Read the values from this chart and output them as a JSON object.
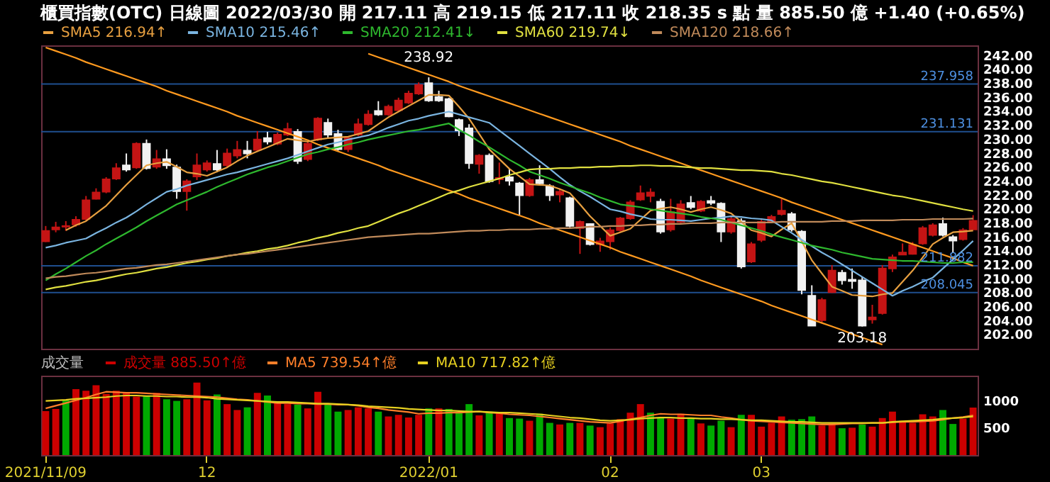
{
  "chart_data": [
    {
      "type": "candlestick",
      "title": "櫃買指數(OTC)  日線圖  2022/03/30  開 217.11  高 219.15  低 217.11  收 218.35  s 點  量 885.50 億  +1.40 (+0.65%)",
      "categories": [
        "2021/11/09",
        null,
        null,
        null,
        null,
        null,
        null,
        null,
        null,
        null,
        null,
        null,
        null,
        null,
        null,
        null,
        "12",
        null,
        null,
        null,
        null,
        null,
        null,
        null,
        null,
        null,
        null,
        null,
        null,
        null,
        null,
        null,
        null,
        null,
        null,
        null,
        null,
        null,
        "2022/01",
        null,
        null,
        null,
        null,
        null,
        null,
        null,
        null,
        null,
        null,
        null,
        null,
        null,
        null,
        null,
        null,
        null,
        "02",
        null,
        null,
        null,
        null,
        null,
        null,
        null,
        null,
        null,
        null,
        null,
        null,
        null,
        null,
        "03",
        null,
        null,
        null,
        null,
        null,
        null,
        null,
        null,
        null,
        null,
        null,
        null,
        null,
        null,
        null,
        null,
        null,
        null,
        null,
        null,
        null
      ],
      "ohlc": [
        [
          215.4,
          217.6,
          215.3,
          216.9
        ],
        [
          217.1,
          218.2,
          216.7,
          217.4
        ],
        [
          217.5,
          218.3,
          216.9,
          217.6
        ],
        [
          217.8,
          219.0,
          217.5,
          218.5
        ],
        [
          218.6,
          221.9,
          218.4,
          221.3
        ],
        [
          221.5,
          223.0,
          221.4,
          222.4
        ],
        [
          222.5,
          224.6,
          222.3,
          224.3
        ],
        [
          224.4,
          226.6,
          224.2,
          225.9
        ],
        [
          226.3,
          228.0,
          225.4,
          225.7
        ],
        [
          226.0,
          229.6,
          225.8,
          229.4
        ],
        [
          229.4,
          230.0,
          225.7,
          225.9
        ],
        [
          226.1,
          228.5,
          225.8,
          227.2
        ],
        [
          227.2,
          228.6,
          225.8,
          226.3
        ],
        [
          226.0,
          226.4,
          221.5,
          222.6
        ],
        [
          222.6,
          224.3,
          219.8,
          224.0
        ],
        [
          224.7,
          228.0,
          224.2,
          226.3
        ],
        [
          225.7,
          227.0,
          225.4,
          226.6
        ],
        [
          226.5,
          228.5,
          225.3,
          225.7
        ],
        [
          226.3,
          228.7,
          226.0,
          228.0
        ],
        [
          227.7,
          229.8,
          227.3,
          228.5
        ],
        [
          228.4,
          229.8,
          227.3,
          228.0
        ],
        [
          228.5,
          231.2,
          228.3,
          230.0
        ],
        [
          230.2,
          231.1,
          229.3,
          229.7
        ],
        [
          229.4,
          231.0,
          229.2,
          230.7
        ],
        [
          230.7,
          232.4,
          230.5,
          231.5
        ],
        [
          231.1,
          231.5,
          226.5,
          226.9
        ],
        [
          227.2,
          229.7,
          226.9,
          229.4
        ],
        [
          230.0,
          233.2,
          229.8,
          233.0
        ],
        [
          232.4,
          233.0,
          230.2,
          230.7
        ],
        [
          230.8,
          231.4,
          228.4,
          228.6
        ],
        [
          228.6,
          230.4,
          228.2,
          230.2
        ],
        [
          230.7,
          233.0,
          230.5,
          232.2
        ],
        [
          232.2,
          234.2,
          232.0,
          233.6
        ],
        [
          234.1,
          235.5,
          233.4,
          233.6
        ],
        [
          233.6,
          235.0,
          233.4,
          234.7
        ],
        [
          234.2,
          236.0,
          234.0,
          235.6
        ],
        [
          235.3,
          237.0,
          235.1,
          236.6
        ],
        [
          236.6,
          238.2,
          236.4,
          237.8
        ],
        [
          238.1,
          238.92,
          235.4,
          235.6
        ],
        [
          236.1,
          237.0,
          235.4,
          235.6
        ],
        [
          235.8,
          236.0,
          233.2,
          233.3
        ],
        [
          232.8,
          233.0,
          230.5,
          231.3
        ],
        [
          231.6,
          232.2,
          225.8,
          226.6
        ],
        [
          226.5,
          227.9,
          225.1,
          227.7
        ],
        [
          227.7,
          228.0,
          223.8,
          224.0
        ],
        [
          224.3,
          226.7,
          223.6,
          224.5
        ],
        [
          224.6,
          225.8,
          223.4,
          224.1
        ],
        [
          223.7,
          223.9,
          219.2,
          222.0
        ],
        [
          222.0,
          224.5,
          221.8,
          224.2
        ],
        [
          224.2,
          226.3,
          223.5,
          223.7
        ],
        [
          223.3,
          223.6,
          221.2,
          222.0
        ],
        [
          222.1,
          223.0,
          221.0,
          222.5
        ],
        [
          221.6,
          221.8,
          217.4,
          217.6
        ],
        [
          217.3,
          218.4,
          213.6,
          218.2
        ],
        [
          217.9,
          218.0,
          214.8,
          215.0
        ],
        [
          215.0,
          215.9,
          213.9,
          215.4
        ],
        [
          215.4,
          217.4,
          214.2,
          217.0
        ],
        [
          217.0,
          218.9,
          216.8,
          218.7
        ],
        [
          218.7,
          221.3,
          218.5,
          221.0
        ],
        [
          221.4,
          223.4,
          221.2,
          222.3
        ],
        [
          221.9,
          223.0,
          221.0,
          222.4
        ],
        [
          221.1,
          221.5,
          216.5,
          216.8
        ],
        [
          217.1,
          221.5,
          216.8,
          219.6
        ],
        [
          218.2,
          221.3,
          218.0,
          220.7
        ],
        [
          220.9,
          221.9,
          220.0,
          220.3
        ],
        [
          219.8,
          221.3,
          219.6,
          221.1
        ],
        [
          221.2,
          221.9,
          220.6,
          220.9
        ],
        [
          220.8,
          221.0,
          215.3,
          216.8
        ],
        [
          216.8,
          219.0,
          216.5,
          218.6
        ],
        [
          218.3,
          218.7,
          211.5,
          211.8
        ],
        [
          212.5,
          215.3,
          212.3,
          215.0
        ],
        [
          215.6,
          218.5,
          215.3,
          218.2
        ],
        [
          218.2,
          219.2,
          218.0,
          218.9
        ],
        [
          219.3,
          221.5,
          219.1,
          219.8
        ],
        [
          219.3,
          219.6,
          216.8,
          217.1
        ],
        [
          216.8,
          217.0,
          207.8,
          208.4
        ],
        [
          207.6,
          209.1,
          203.3,
          203.3
        ],
        [
          204.1,
          207.3,
          203.8,
          207.0
        ],
        [
          208.1,
          212.0,
          208.0,
          211.2
        ],
        [
          210.9,
          211.3,
          209.2,
          209.8
        ],
        [
          209.9,
          211.5,
          208.6,
          209.7
        ],
        [
          209.8,
          210.3,
          203.18,
          203.3
        ],
        [
          204.2,
          206.3,
          203.6,
          204.5
        ],
        [
          205.1,
          212.0,
          204.9,
          211.5
        ],
        [
          211.5,
          213.5,
          211.0,
          213.1
        ],
        [
          213.5,
          215.1,
          213.5,
          213.8
        ],
        [
          213.6,
          215.3,
          213.5,
          214.9
        ],
        [
          215.1,
          217.6,
          214.9,
          217.3
        ],
        [
          216.3,
          218.0,
          216.1,
          217.7
        ],
        [
          217.9,
          218.8,
          216.1,
          216.3
        ],
        [
          216.0,
          216.3,
          213.8,
          215.5
        ],
        [
          215.7,
          217.3,
          215.5,
          217.0
        ],
        [
          217.11,
          219.15,
          217.11,
          218.35
        ]
      ],
      "series": [
        {
          "type": "line",
          "color": "#ff9a1f",
          "values": [
            243.2,
            242.7,
            242.2,
            241.7,
            241.1,
            240.6,
            240.1,
            239.6,
            239.1,
            238.6,
            238.1,
            237.6,
            237.0,
            236.5,
            236.0,
            235.5,
            235.0,
            234.5,
            234.0,
            233.4,
            232.9,
            232.4,
            231.9,
            231.4,
            230.9,
            230.4,
            229.9,
            229.3,
            228.8,
            228.3,
            227.8,
            227.3,
            226.8,
            226.3,
            225.7,
            225.2,
            224.7,
            224.2,
            223.7,
            223.2,
            222.7,
            222.2,
            221.6,
            221.1,
            220.6,
            220.1,
            219.6,
            219.1,
            218.6,
            218.0,
            217.5,
            217.0,
            216.5,
            216.0,
            215.5,
            215.0,
            214.5,
            213.9,
            213.4,
            212.9,
            212.4,
            211.9,
            211.4,
            210.9,
            210.4,
            209.8,
            209.3,
            208.8,
            208.3,
            207.8,
            207.3,
            206.8,
            206.2,
            205.7,
            205.2,
            204.7,
            204.2,
            203.7,
            203.2,
            202.7,
            202.1,
            201.6,
            201.1,
            200.6,
            null,
            null,
            null,
            null,
            null,
            null,
            null,
            null,
            null
          ]
        },
        {
          "type": "line",
          "color": "#ff9a1f",
          "values": [
            null,
            null,
            null,
            null,
            null,
            null,
            null,
            null,
            null,
            null,
            null,
            null,
            null,
            null,
            null,
            null,
            null,
            null,
            null,
            null,
            null,
            null,
            null,
            null,
            null,
            null,
            null,
            null,
            null,
            null,
            null,
            null,
            242.3,
            241.8,
            241.3,
            240.8,
            240.3,
            239.8,
            239.3,
            238.8,
            238.3,
            237.7,
            237.2,
            236.7,
            236.2,
            235.7,
            235.2,
            234.7,
            234.2,
            233.7,
            233.2,
            232.7,
            232.2,
            231.7,
            231.2,
            230.7,
            230.2,
            229.7,
            229.1,
            228.6,
            228.1,
            227.6,
            227.1,
            226.6,
            226.1,
            225.6,
            225.1,
            224.6,
            224.1,
            223.6,
            223.1,
            222.6,
            222.1,
            221.6,
            221.0,
            220.5,
            220.0,
            219.5,
            219.0,
            218.5,
            218.0,
            217.5,
            217.0,
            216.5,
            216.0,
            215.5,
            215.0,
            214.5,
            214.0,
            213.5,
            213.0,
            212.4,
            211.9
          ]
        },
        {
          "name": "SMA5 216.94↑",
          "type": "line",
          "color": "#e8a040",
          "values": [
            null,
            null,
            217.0,
            217.7,
            218.3,
            219.4,
            220.5,
            222.0,
            223.5,
            224.9,
            226.3,
            226.6,
            226.8,
            226.1,
            225.3,
            225.1,
            224.8,
            225.4,
            226.0,
            226.9,
            227.7,
            228.3,
            228.9,
            229.5,
            230.1,
            229.9,
            229.7,
            230.0,
            230.2,
            230.3,
            230.4,
            230.8,
            231.2,
            232.2,
            233.2,
            234.0,
            234.8,
            235.6,
            236.4,
            236.4,
            236.3,
            234.7,
            233.0,
            230.8,
            228.6,
            227.2,
            225.8,
            224.7,
            223.6,
            223.5,
            223.4,
            222.9,
            222.3,
            220.7,
            219.0,
            217.6,
            216.2,
            216.7,
            217.2,
            218.5,
            219.8,
            220.1,
            220.3,
            220.0,
            219.6,
            220.0,
            220.3,
            219.9,
            219.4,
            218.2,
            217.0,
            216.6,
            216.1,
            217.1,
            218.0,
            215.4,
            212.7,
            210.8,
            208.9,
            208.3,
            207.7,
            207.6,
            207.5,
            207.8,
            208.0,
            209.6,
            211.2,
            213.1,
            215.0,
            215.9,
            216.7,
            216.8,
            216.94
          ]
        },
        {
          "name": "SMA10 215.46↑",
          "type": "line",
          "color": "#7ab4e0",
          "values": [
            214.5,
            214.8,
            215.2,
            215.5,
            215.8,
            216.6,
            217.3,
            218.1,
            218.8,
            219.7,
            220.7,
            221.6,
            222.5,
            222.9,
            223.4,
            223.8,
            224.2,
            224.6,
            225.0,
            225.3,
            225.7,
            226.1,
            226.5,
            226.9,
            227.3,
            227.8,
            228.3,
            228.8,
            229.3,
            229.6,
            230.0,
            230.3,
            230.6,
            231.1,
            231.7,
            232.2,
            232.7,
            233.0,
            233.4,
            233.7,
            234.0,
            233.6,
            233.2,
            232.8,
            232.4,
            231.3,
            230.2,
            229.1,
            228.0,
            226.9,
            225.8,
            224.6,
            223.5,
            222.6,
            221.8,
            220.9,
            220.0,
            219.7,
            219.3,
            219.0,
            218.6,
            218.5,
            218.5,
            218.4,
            218.3,
            218.5,
            218.7,
            218.8,
            219.0,
            218.9,
            218.7,
            218.6,
            218.4,
            217.5,
            216.6,
            215.6,
            214.7,
            213.8,
            213.0,
            212.1,
            211.2,
            210.3,
            209.4,
            208.5,
            207.6,
            208.3,
            208.9,
            209.6,
            210.2,
            211.5,
            212.8,
            214.1,
            215.46
          ]
        },
        {
          "name": "SMA20 212.41↓",
          "type": "line",
          "color": "#2eb82e",
          "values": [
            209.8,
            210.7,
            211.5,
            212.4,
            213.3,
            214.1,
            215.0,
            215.8,
            216.6,
            217.4,
            218.3,
            219.1,
            219.9,
            220.7,
            221.3,
            221.9,
            222.5,
            223.2,
            223.8,
            224.4,
            225.0,
            225.5,
            226.0,
            226.4,
            226.9,
            227.4,
            227.9,
            228.2,
            228.6,
            228.9,
            229.3,
            229.6,
            230.0,
            230.3,
            230.6,
            230.9,
            231.2,
            231.4,
            231.7,
            232.0,
            232.3,
            231.4,
            230.6,
            229.7,
            228.9,
            228.0,
            227.1,
            226.3,
            225.4,
            224.9,
            224.4,
            223.8,
            223.3,
            222.8,
            222.3,
            221.7,
            221.2,
            220.7,
            220.5,
            220.3,
            220.0,
            219.8,
            219.6,
            219.4,
            219.2,
            218.9,
            218.7,
            218.5,
            218.1,
            217.7,
            217.3,
            216.9,
            216.4,
            216.0,
            215.6,
            215.2,
            214.8,
            214.5,
            214.2,
            213.8,
            213.5,
            213.2,
            212.9,
            212.8,
            212.7,
            212.6,
            212.6,
            212.5,
            212.4,
            212.3,
            212.3,
            212.4,
            212.41
          ]
        },
        {
          "name": "SMA60 219.74↓",
          "type": "line",
          "color": "#e0e040",
          "values": [
            208.5,
            208.8,
            209.0,
            209.3,
            209.6,
            209.8,
            210.1,
            210.4,
            210.7,
            210.9,
            211.2,
            211.5,
            211.7,
            212.0,
            212.3,
            212.5,
            212.8,
            213.0,
            213.3,
            213.5,
            213.8,
            214.0,
            214.3,
            214.5,
            214.8,
            215.2,
            215.5,
            215.9,
            216.2,
            216.6,
            216.9,
            217.3,
            217.6,
            218.2,
            218.8,
            219.4,
            219.9,
            220.5,
            221.1,
            221.7,
            222.3,
            222.7,
            223.2,
            223.6,
            224.0,
            224.4,
            224.9,
            225.3,
            225.7,
            225.8,
            225.8,
            225.9,
            225.9,
            226.0,
            226.0,
            226.1,
            226.1,
            226.2,
            226.2,
            226.3,
            226.3,
            226.2,
            226.2,
            226.1,
            226.0,
            225.9,
            225.9,
            225.8,
            225.7,
            225.6,
            225.6,
            225.5,
            225.4,
            225.1,
            224.9,
            224.6,
            224.3,
            224.0,
            223.8,
            223.5,
            223.2,
            222.9,
            222.6,
            222.3,
            222.0,
            221.8,
            221.5,
            221.2,
            220.9,
            220.6,
            220.3,
            220.0,
            219.74
          ]
        },
        {
          "name": "SMA120 218.66↑",
          "type": "line",
          "color": "#c08a5a",
          "values": [
            210.1,
            210.3,
            210.4,
            210.6,
            210.8,
            210.9,
            211.1,
            211.3,
            211.5,
            211.6,
            211.8,
            212.0,
            212.1,
            212.3,
            212.5,
            212.7,
            212.9,
            213.1,
            213.3,
            213.5,
            213.6,
            213.8,
            214.0,
            214.2,
            214.4,
            214.6,
            214.8,
            215.0,
            215.2,
            215.4,
            215.6,
            215.8,
            216.0,
            216.1,
            216.2,
            216.3,
            216.4,
            216.5,
            216.5,
            216.6,
            216.7,
            216.8,
            216.9,
            216.9,
            217.0,
            217.0,
            217.1,
            217.1,
            217.1,
            217.2,
            217.2,
            217.3,
            217.3,
            217.4,
            217.5,
            217.5,
            217.6,
            217.6,
            217.7,
            217.7,
            217.8,
            217.8,
            217.9,
            217.9,
            218.0,
            218.0,
            218.0,
            218.1,
            218.1,
            218.1,
            218.1,
            218.1,
            218.1,
            218.2,
            218.2,
            218.2,
            218.2,
            218.2,
            218.3,
            218.3,
            218.3,
            218.4,
            218.4,
            218.4,
            218.4,
            218.5,
            218.5,
            218.5,
            218.6,
            218.6,
            218.6,
            218.6,
            218.66
          ]
        }
      ],
      "ylim": [
        200,
        243.5
      ],
      "yticks": [
        {
          "value": 202,
          "label": "202.00"
        },
        {
          "value": 204,
          "label": "204.00"
        },
        {
          "value": 206,
          "label": "206.00"
        },
        {
          "value": 208,
          "label": "208.00"
        },
        {
          "value": 210,
          "label": "210.00"
        },
        {
          "value": 212,
          "label": "212.00"
        },
        {
          "value": 214,
          "label": "214.00"
        },
        {
          "value": 216,
          "label": "216.00"
        },
        {
          "value": 218,
          "label": "218.00"
        },
        {
          "value": 220,
          "label": "220.00"
        },
        {
          "value": 222,
          "label": "222.00"
        },
        {
          "value": 224,
          "label": "224.00"
        },
        {
          "value": 226,
          "label": "226.00"
        },
        {
          "value": 228,
          "label": "228.00"
        },
        {
          "value": 230,
          "label": "230.00"
        },
        {
          "value": 232,
          "label": "232.00"
        },
        {
          "value": 234,
          "label": "234.00"
        },
        {
          "value": 236,
          "label": "236.00"
        },
        {
          "value": 238,
          "label": "238.00"
        },
        {
          "value": 240,
          "label": "240.00"
        },
        {
          "value": 242,
          "label": "242.00"
        }
      ],
      "ref_lines": [
        {
          "axis": "y",
          "value": 237.958,
          "label": "237.958",
          "color": "#1f4f8f"
        },
        {
          "axis": "y",
          "value": 231.131,
          "label": "231.131",
          "color": "#1f4f8f"
        },
        {
          "axis": "y",
          "value": 211.882,
          "label": "211.882",
          "color": "#1f4f8f"
        },
        {
          "axis": "y",
          "value": 208.045,
          "label": "208.045",
          "color": "#1f4f8f"
        }
      ],
      "annotations": [
        {
          "text": "238.92",
          "x": "2022/01",
          "y": 238.92
        },
        {
          "text": "203.18",
          "y": 203.18
        }
      ],
      "legend": "top left",
      "tick_labels": "y"
    },
    {
      "type": "bar",
      "legend_title": "成交量",
      "categories": [
        "2021/11/09",
        null,
        null,
        null,
        null,
        null,
        null,
        null,
        null,
        null,
        null,
        null,
        null,
        null,
        null,
        null,
        "12",
        null,
        null,
        null,
        null,
        null,
        null,
        null,
        null,
        null,
        null,
        null,
        null,
        null,
        null,
        null,
        null,
        null,
        null,
        null,
        null,
        null,
        "2022/01",
        null,
        null,
        null,
        null,
        null,
        null,
        null,
        null,
        null,
        null,
        null,
        null,
        null,
        null,
        null,
        null,
        null,
        "02",
        null,
        null,
        null,
        null,
        null,
        null,
        null,
        null,
        null,
        null,
        null,
        null,
        null,
        null,
        "03",
        null,
        null,
        null,
        null,
        null,
        null,
        null,
        null,
        null,
        null,
        null,
        null,
        null,
        null,
        null,
        null,
        null,
        null,
        null,
        null,
        null
      ],
      "series": [
        {
          "name": "成交量 885.50↑億",
          "type": "bar",
          "color": "#cc0000",
          "values": [
            820,
            860,
            1020,
            1230,
            1200,
            1300,
            1140,
            1200,
            1160,
            1090,
            1110,
            1160,
            1040,
            1010,
            1040,
            1350,
            1020,
            1130,
            950,
            840,
            890,
            1160,
            1110,
            1000,
            950,
            940,
            870,
            1180,
            950,
            810,
            840,
            890,
            870,
            810,
            720,
            750,
            700,
            750,
            870,
            870,
            860,
            790,
            950,
            740,
            810,
            790,
            690,
            680,
            640,
            770,
            600,
            570,
            600,
            600,
            550,
            520,
            590,
            670,
            790,
            950,
            790,
            700,
            680,
            770,
            700,
            590,
            550,
            640,
            520,
            750,
            750,
            530,
            600,
            720,
            660,
            670,
            720,
            550,
            590,
            500,
            510,
            570,
            530,
            690,
            810,
            640,
            600,
            760,
            720,
            840,
            580,
            680,
            885.5
          ],
          "colors": [
            "#cc0000",
            "#cc0000",
            "#00aa00",
            "#cc0000",
            "#cc0000",
            "#cc0000",
            "#cc0000",
            "#cc0000",
            "#cc0000",
            "#cc0000",
            "#00aa00",
            "#cc0000",
            "#00aa00",
            "#00aa00",
            "#cc0000",
            "#cc0000",
            "#cc0000",
            "#00aa00",
            "#cc0000",
            "#cc0000",
            "#00aa00",
            "#cc0000",
            "#00aa00",
            "#cc0000",
            "#cc0000",
            "#00aa00",
            "#cc0000",
            "#cc0000",
            "#00aa00",
            "#00aa00",
            "#cc0000",
            "#cc0000",
            "#cc0000",
            "#00aa00",
            "#cc0000",
            "#cc0000",
            "#cc0000",
            "#cc0000",
            "#00aa00",
            "#cc0000",
            "#00aa00",
            "#00aa00",
            "#00aa00",
            "#cc0000",
            "#00aa00",
            "#cc0000",
            "#00aa00",
            "#00aa00",
            "#cc0000",
            "#00aa00",
            "#00aa00",
            "#cc0000",
            "#00aa00",
            "#cc0000",
            "#00aa00",
            "#cc0000",
            "#cc0000",
            "#cc0000",
            "#cc0000",
            "#cc0000",
            "#00aa00",
            "#00aa00",
            "#cc0000",
            "#cc0000",
            "#00aa00",
            "#cc0000",
            "#00aa00",
            "#00aa00",
            "#cc0000",
            "#00aa00",
            "#cc0000",
            "#cc0000",
            "#cc0000",
            "#cc0000",
            "#00aa00",
            "#00aa00",
            "#00aa00",
            "#cc0000",
            "#cc0000",
            "#00aa00",
            "#cc0000",
            "#00aa00",
            "#cc0000",
            "#cc0000",
            "#cc0000",
            "#cc0000",
            "#cc0000",
            "#cc0000",
            "#cc0000",
            "#00aa00",
            "#00aa00",
            "#cc0000",
            "#cc0000"
          ]
        },
        {
          "name": "MA5 739.54↑億",
          "type": "line",
          "color": "#ff7f2a",
          "values": [
            870,
            920,
            970,
            1020,
            1070,
            1130,
            1180,
            1170,
            1160,
            1160,
            1150,
            1140,
            1130,
            1120,
            1110,
            1100,
            1090,
            1080,
            1060,
            1040,
            1030,
            1010,
            990,
            970,
            970,
            960,
            960,
            950,
            950,
            940,
            940,
            920,
            890,
            870,
            840,
            820,
            800,
            770,
            780,
            780,
            790,
            790,
            800,
            810,
            790,
            780,
            760,
            750,
            740,
            720,
            700,
            680,
            660,
            640,
            620,
            610,
            600,
            630,
            670,
            700,
            740,
            770,
            760,
            760,
            750,
            740,
            740,
            710,
            690,
            660,
            640,
            630,
            620,
            610,
            600,
            590,
            580,
            570,
            570,
            580,
            590,
            590,
            600,
            600,
            610,
            620,
            620,
            630,
            640,
            660,
            690,
            710,
            739.54
          ]
        },
        {
          "name": "MA10 717.82↑億",
          "type": "line",
          "color": "#e6d020",
          "values": [
            1010,
            1020,
            1030,
            1050,
            1060,
            1070,
            1080,
            1100,
            1110,
            1110,
            1100,
            1100,
            1090,
            1090,
            1080,
            1080,
            1070,
            1050,
            1040,
            1030,
            1020,
            1010,
            1000,
            990,
            990,
            980,
            970,
            960,
            960,
            950,
            940,
            930,
            910,
            900,
            890,
            880,
            860,
            850,
            840,
            830,
            830,
            820,
            810,
            810,
            800,
            790,
            790,
            780,
            770,
            760,
            740,
            720,
            700,
            690,
            670,
            650,
            640,
            650,
            660,
            680,
            690,
            700,
            700,
            690,
            690,
            680,
            680,
            670,
            670,
            660,
            650,
            650,
            640,
            630,
            620,
            620,
            610,
            600,
            600,
            600,
            600,
            600,
            600,
            600,
            620,
            630,
            640,
            650,
            660,
            680,
            690,
            700,
            717.82
          ]
        }
      ],
      "ylim": [
        0,
        1480
      ],
      "yticks": [
        500,
        1000
      ],
      "legend": "top left"
    }
  ]
}
